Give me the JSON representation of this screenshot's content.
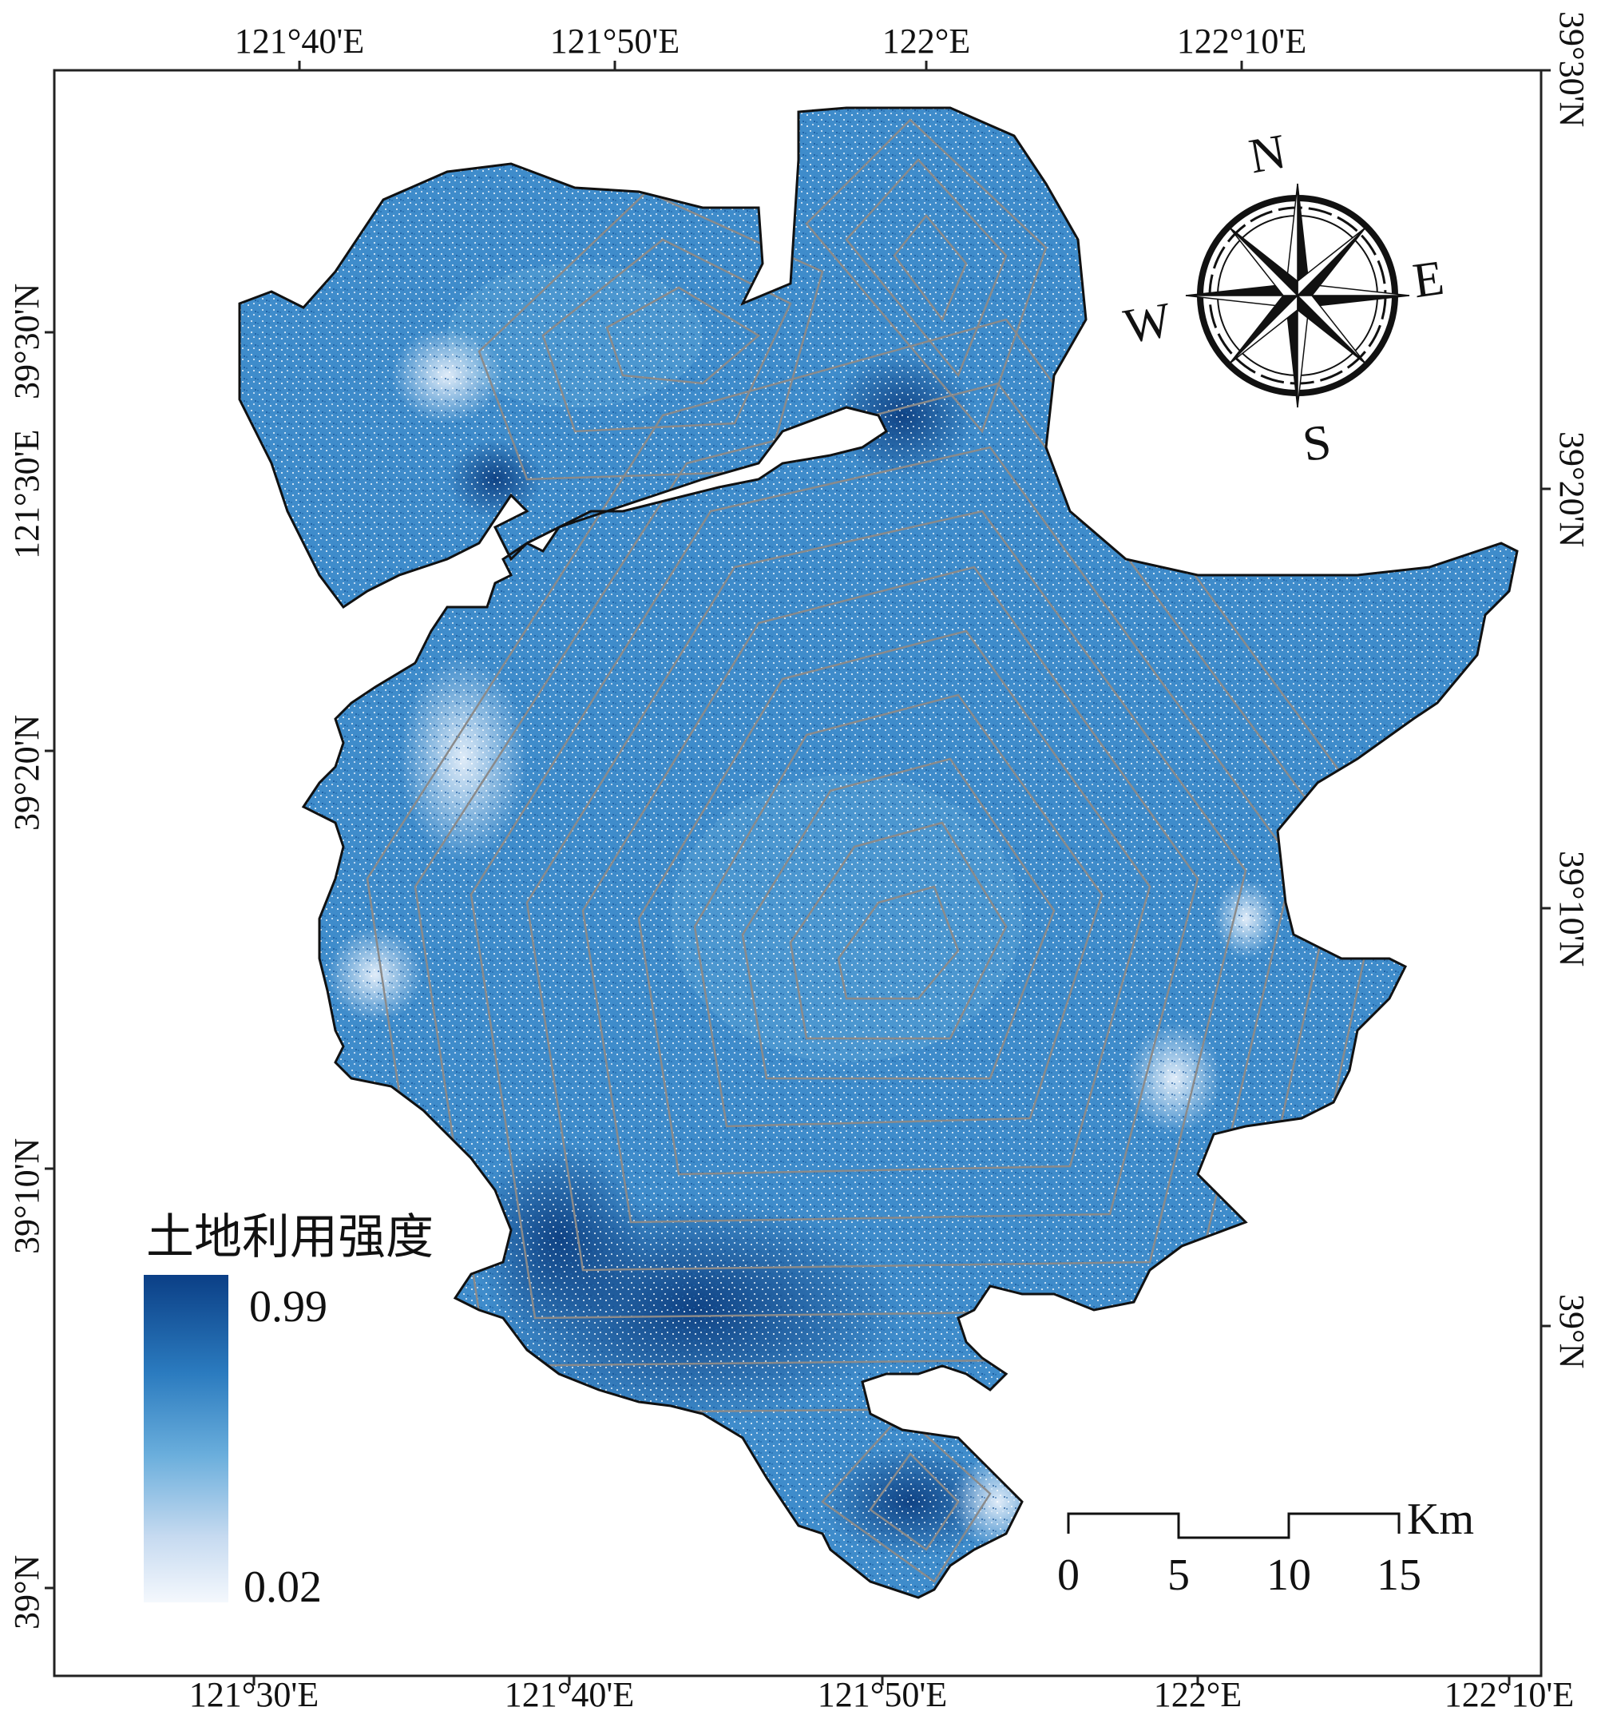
{
  "map": {
    "legend": {
      "title": "土地利用强度",
      "max_label": "0.99",
      "min_label": "0.02",
      "ramp_colors": [
        "#f4f8fd",
        "#c6daf0",
        "#6aaedc",
        "#2b7bbf",
        "#0b3f86"
      ]
    },
    "top_axis_labels": [
      "121°40'E",
      "121°50'E",
      "122°E",
      "122°10'E"
    ],
    "bottom_axis_labels": [
      "121°30'E",
      "121°40'E",
      "121°50'E",
      "122°E",
      "122°10'E"
    ],
    "left_axis_labels": [
      "39°30'N",
      "121°30'E",
      "39°20'N",
      "39°10'N",
      "39°N"
    ],
    "right_axis_labels": [
      "39°30'N",
      "39°20'N",
      "39°10'N",
      "39°N"
    ],
    "compass": {
      "north": "N",
      "south": "S",
      "east": "E",
      "west": "W"
    },
    "scale_bar": {
      "unit": "Km",
      "ticks": [
        "0",
        "5",
        "10",
        "15"
      ]
    },
    "colors": {
      "land_fill": "#3f8ccb",
      "boundary": "#111111",
      "contour": "#8a8a8a",
      "dense_urban": "#0f4a8f",
      "sparse": "#dbe8f6"
    }
  }
}
